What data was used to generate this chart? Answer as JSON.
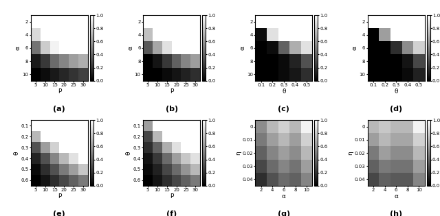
{
  "subplots": [
    {
      "label": "(a)",
      "xticklabels": [
        "5",
        "10",
        "15",
        "20",
        "25",
        "30"
      ],
      "yticklabels": [
        "2",
        "4",
        "6",
        "8",
        "10"
      ],
      "xlabel": "P",
      "ylabel": "α",
      "data": [
        [
          1.0,
          1.0,
          1.0,
          1.0,
          1.0,
          1.0
        ],
        [
          0.85,
          1.0,
          1.0,
          1.0,
          1.0,
          1.0
        ],
        [
          0.45,
          0.8,
          0.95,
          1.0,
          1.0,
          1.0
        ],
        [
          0.1,
          0.22,
          0.42,
          0.52,
          0.62,
          0.68
        ],
        [
          0.0,
          0.05,
          0.1,
          0.15,
          0.2,
          0.25
        ]
      ],
      "xvals": [
        5,
        10,
        15,
        20,
        25,
        30
      ],
      "yvals": [
        2,
        4,
        6,
        8,
        10
      ],
      "invert_y": true
    },
    {
      "label": "(b)",
      "xticklabels": [
        "5",
        "10",
        "15",
        "20",
        "25",
        "30"
      ],
      "yticklabels": [
        "2",
        "4",
        "6",
        "8",
        "10"
      ],
      "xlabel": "P",
      "ylabel": "α",
      "data": [
        [
          1.0,
          1.0,
          1.0,
          1.0,
          1.0,
          1.0
        ],
        [
          0.75,
          1.0,
          1.0,
          1.0,
          1.0,
          1.0
        ],
        [
          0.35,
          0.65,
          0.88,
          1.0,
          1.0,
          1.0
        ],
        [
          0.0,
          0.08,
          0.22,
          0.38,
          0.52,
          0.62
        ],
        [
          0.0,
          0.0,
          0.04,
          0.08,
          0.13,
          0.18
        ]
      ],
      "xvals": [
        5,
        10,
        15,
        20,
        25,
        30
      ],
      "yvals": [
        2,
        4,
        6,
        8,
        10
      ],
      "invert_y": true
    },
    {
      "label": "(c)",
      "xticklabels": [
        "0.1",
        "0.2",
        "0.3",
        "0.4",
        "0.5"
      ],
      "yticklabels": [
        "2",
        "4",
        "6",
        "8",
        "10"
      ],
      "xlabel": "θ",
      "ylabel": "α",
      "data": [
        [
          1.0,
          1.0,
          1.0,
          1.0,
          1.0
        ],
        [
          0.05,
          0.88,
          1.0,
          1.0,
          1.0
        ],
        [
          0.0,
          0.05,
          0.38,
          0.68,
          0.88
        ],
        [
          0.0,
          0.0,
          0.04,
          0.14,
          0.32
        ],
        [
          0.0,
          0.0,
          0.04,
          0.09,
          0.18
        ]
      ],
      "xvals": [
        0.1,
        0.2,
        0.3,
        0.4,
        0.5
      ],
      "yvals": [
        2,
        4,
        6,
        8,
        10
      ],
      "invert_y": true
    },
    {
      "label": "(d)",
      "xticklabels": [
        "0.1",
        "0.2",
        "0.3",
        "0.4",
        "0.5"
      ],
      "yticklabels": [
        "2",
        "4",
        "6",
        "8",
        "10"
      ],
      "xlabel": "θ",
      "ylabel": "α",
      "data": [
        [
          1.0,
          1.0,
          1.0,
          1.0,
          1.0
        ],
        [
          0.0,
          0.62,
          1.0,
          1.0,
          1.0
        ],
        [
          0.0,
          0.0,
          0.18,
          0.55,
          0.82
        ],
        [
          0.0,
          0.0,
          0.0,
          0.08,
          0.28
        ],
        [
          0.0,
          0.0,
          0.0,
          0.04,
          0.13
        ]
      ],
      "xvals": [
        0.1,
        0.2,
        0.3,
        0.4,
        0.5
      ],
      "yvals": [
        2,
        4,
        6,
        8,
        10
      ],
      "invert_y": true
    },
    {
      "label": "(e)",
      "xticklabels": [
        "5",
        "10",
        "15",
        "20",
        "25",
        "30"
      ],
      "yticklabels": [
        "0.1",
        "0.2",
        "0.3",
        "0.4",
        "0.5",
        "0.6"
      ],
      "xlabel": "P",
      "ylabel": "θ",
      "data": [
        [
          1.0,
          1.0,
          1.0,
          1.0,
          1.0,
          1.0
        ],
        [
          0.72,
          1.0,
          1.0,
          1.0,
          1.0,
          1.0
        ],
        [
          0.32,
          0.62,
          0.82,
          1.0,
          1.0,
          1.0
        ],
        [
          0.14,
          0.32,
          0.52,
          0.72,
          0.88,
          1.0
        ],
        [
          0.04,
          0.18,
          0.32,
          0.48,
          0.62,
          0.78
        ],
        [
          0.0,
          0.08,
          0.18,
          0.28,
          0.38,
          0.48
        ]
      ],
      "xvals": [
        5,
        10,
        15,
        20,
        25,
        30
      ],
      "yvals": [
        0.1,
        0.2,
        0.3,
        0.4,
        0.5,
        0.6
      ],
      "invert_y": true
    },
    {
      "label": "(f)",
      "xticklabels": [
        "5",
        "10",
        "15",
        "20",
        "25",
        "30"
      ],
      "yticklabels": [
        "0.1",
        "0.2",
        "0.3",
        "0.4",
        "0.5",
        "0.6"
      ],
      "xlabel": "P",
      "ylabel": "θ",
      "data": [
        [
          0.62,
          1.0,
          1.0,
          1.0,
          1.0,
          1.0
        ],
        [
          0.28,
          0.72,
          1.0,
          1.0,
          1.0,
          1.0
        ],
        [
          0.18,
          0.38,
          0.68,
          0.88,
          1.0,
          1.0
        ],
        [
          0.08,
          0.22,
          0.42,
          0.62,
          0.78,
          0.88
        ],
        [
          0.04,
          0.13,
          0.28,
          0.42,
          0.58,
          0.72
        ],
        [
          0.0,
          0.08,
          0.18,
          0.28,
          0.38,
          0.48
        ]
      ],
      "xvals": [
        5,
        10,
        15,
        20,
        25,
        30
      ],
      "yvals": [
        0.1,
        0.2,
        0.3,
        0.4,
        0.5,
        0.6
      ],
      "invert_y": true
    },
    {
      "label": "(g)",
      "xticklabels": [
        "2",
        "4",
        "6",
        "8",
        "10"
      ],
      "yticklabels": [
        "0",
        "0.01",
        "0.02",
        "0.03",
        "0.04"
      ],
      "xlabel": "α",
      "ylabel": "η",
      "data": [
        [
          0.55,
          0.72,
          0.82,
          0.72,
          0.95
        ],
        [
          0.48,
          0.62,
          0.72,
          0.62,
          0.82
        ],
        [
          0.38,
          0.52,
          0.62,
          0.55,
          0.72
        ],
        [
          0.28,
          0.42,
          0.52,
          0.45,
          0.62
        ],
        [
          0.18,
          0.32,
          0.42,
          0.38,
          0.52
        ]
      ],
      "xvals": [
        2,
        4,
        6,
        8,
        10
      ],
      "yvals": [
        0.0,
        0.01,
        0.02,
        0.03,
        0.04
      ],
      "invert_y": true
    },
    {
      "label": "(h)",
      "xticklabels": [
        "2",
        "4",
        "6",
        "8",
        "10"
      ],
      "yticklabels": [
        "0",
        "0.01",
        "0.02",
        "0.03",
        "0.04"
      ],
      "xlabel": "α",
      "ylabel": "η",
      "data": [
        [
          0.72,
          0.78,
          0.72,
          0.72,
          0.95
        ],
        [
          0.62,
          0.72,
          0.65,
          0.65,
          0.82
        ],
        [
          0.48,
          0.62,
          0.55,
          0.55,
          0.72
        ],
        [
          0.38,
          0.48,
          0.45,
          0.45,
          0.62
        ],
        [
          0.28,
          0.38,
          0.35,
          0.35,
          0.52
        ]
      ],
      "xvals": [
        2,
        4,
        6,
        8,
        10
      ],
      "yvals": [
        0.0,
        0.01,
        0.02,
        0.03,
        0.04
      ],
      "invert_y": true
    }
  ],
  "colormap": "gray",
  "vmin": 0,
  "vmax": 1,
  "label_fontsize": 6.5,
  "tick_fontsize": 5,
  "cbar_fontsize": 5,
  "fig_label_fontsize": 8
}
